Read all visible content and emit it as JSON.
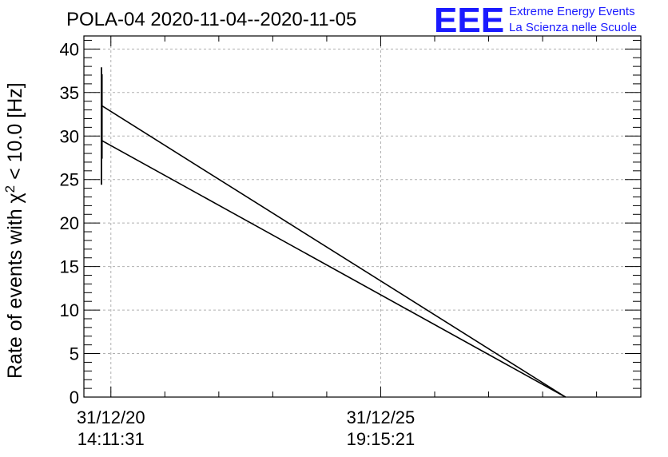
{
  "header": {
    "title": "POLA-04 2020-11-04--2020-11-05"
  },
  "logo": {
    "mark": "EEE",
    "line1": "Extreme Energy Events",
    "line2": "La Scienza nelle Scuole",
    "color": "#1a1aff"
  },
  "chart_data": {
    "type": "line",
    "title": "POLA-04 2020-11-04--2020-11-05",
    "ylabel_prefix": "Rate of events with χ",
    "ylabel_sup": "2",
    "ylabel_suffix": " < 10.0 [Hz]",
    "ylim": [
      0,
      41.5
    ],
    "xlim": [
      -0.1,
      1.964
    ],
    "yticks": [
      0,
      5,
      10,
      15,
      20,
      25,
      30,
      35,
      40
    ],
    "xticks": [
      {
        "x": 0,
        "line1": "31/12/20",
        "line2": "14:11:31"
      },
      {
        "x": 1,
        "line1": "31/12/25",
        "line2": "19:15:21"
      }
    ],
    "grid": true,
    "series": [
      {
        "values": [
          [
            -0.035,
            33.5
          ],
          [
            1.685,
            0
          ]
        ]
      },
      {
        "values": [
          [
            -0.035,
            29.5
          ],
          [
            1.685,
            0
          ]
        ]
      }
    ],
    "error_bars": [
      {
        "x": -0.035,
        "low": 24.4,
        "high": 37.9
      },
      {
        "x": -0.033,
        "low": 27.4,
        "high": 37.1
      }
    ],
    "line_color": "#000000",
    "grid_color": "#b0b0b0"
  }
}
